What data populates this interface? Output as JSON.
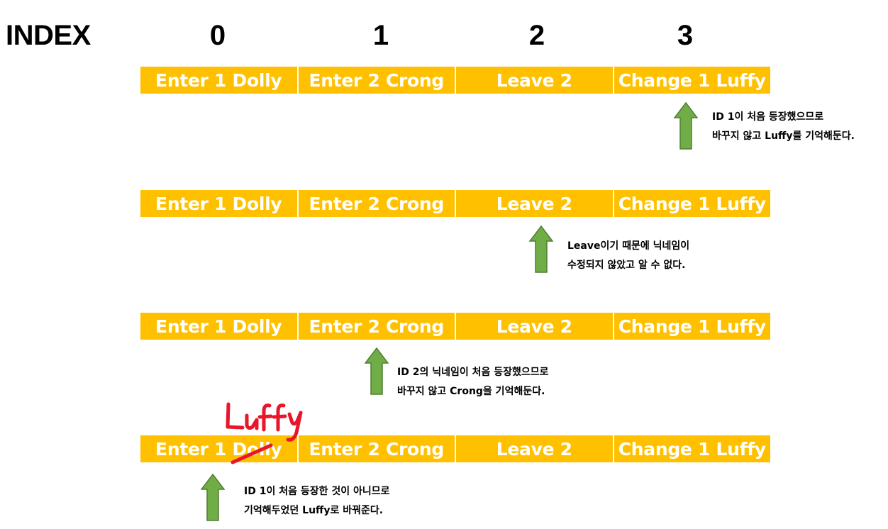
{
  "index_label": "INDEX",
  "indices": [
    "0",
    "1",
    "2",
    "3"
  ],
  "rows": [
    {
      "cells": [
        "Enter 1 Dolly",
        "Enter 2 Crong",
        "Leave 2",
        "Change 1 Luffy"
      ]
    },
    {
      "cells": [
        "Enter 1 Dolly",
        "Enter 2 Crong",
        "Leave 2",
        "Change 1 Luffy"
      ]
    },
    {
      "cells": [
        "Enter 1 Dolly",
        "Enter 2 Crong",
        "Leave 2",
        "Change 1 Luffy"
      ]
    },
    {
      "cells": [
        "Enter 1 Dolly",
        "Enter 2 Crong",
        "Leave 2",
        "Change 1 Luffy"
      ]
    }
  ],
  "notes": [
    {
      "line1": "ID 1이 처음 등장했으므로",
      "line2": "바꾸지 않고 Luffy를 기억해둔다."
    },
    {
      "line1": "Leave이기 때문에 닉네임이",
      "line2": "수정되지 않았고 알 수 없다."
    },
    {
      "line1": "ID 2의 닉네임이 처음 등장했으므로",
      "line2": "바꾸지 않고 Crong을 기억해둔다."
    },
    {
      "line1": "ID 1이 처음 등장한 것이 아니므로",
      "line2": "기억해두었던 Luffy로 바꿔준다."
    }
  ],
  "handwriting": "Luffy",
  "colors": {
    "cell_bg": "#ffc000",
    "cell_text": "#ffffff",
    "arrow_fill": "#70ad47",
    "arrow_stroke": "#507e32",
    "handwriting": "#e8162a"
  }
}
